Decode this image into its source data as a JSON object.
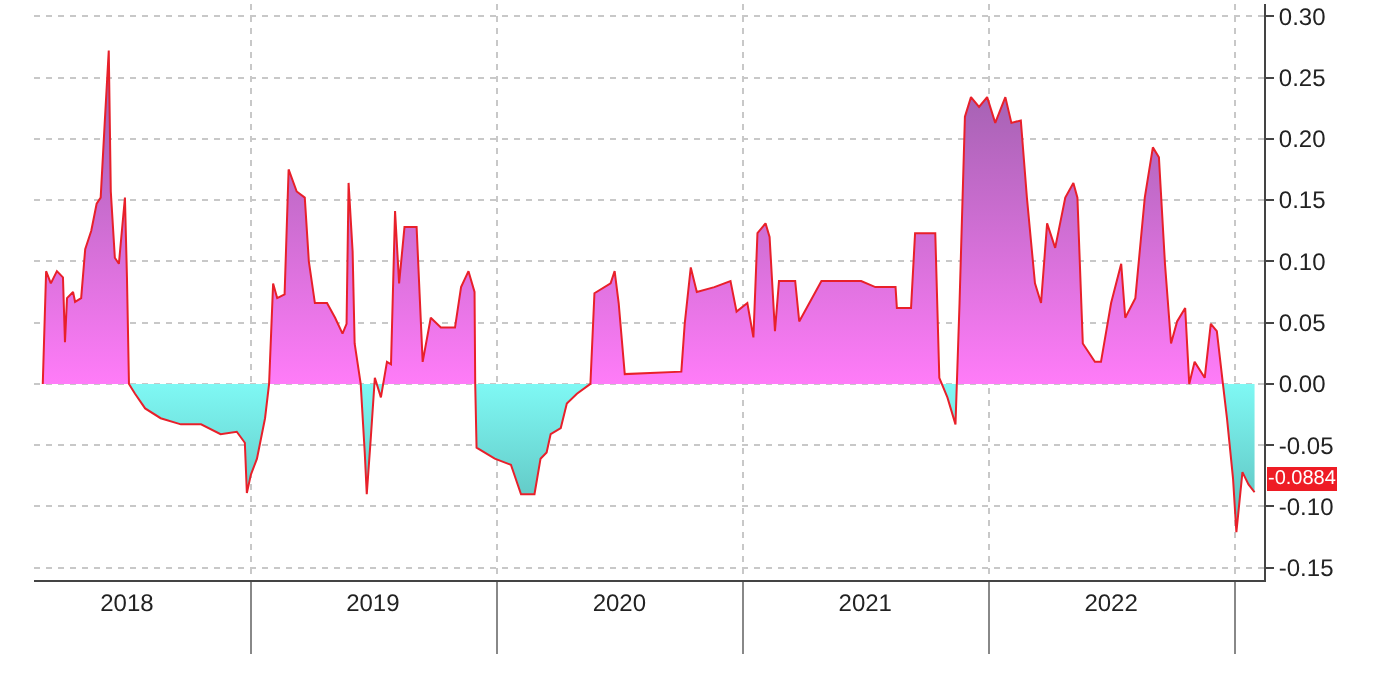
{
  "chart_data": {
    "type": "area",
    "x": [
      "2018-02-26",
      "2018-03-03",
      "2018-03-10",
      "2018-03-19",
      "2018-03-28",
      "2018-03-31",
      "2018-04-03",
      "2018-04-12",
      "2018-04-15",
      "2018-04-24",
      "2018-04-30",
      "2018-05-09",
      "2018-05-17",
      "2018-05-23",
      "2018-05-29",
      "2018-06-04",
      "2018-06-07",
      "2018-06-13",
      "2018-06-19",
      "2018-06-28",
      "2018-07-01",
      "2018-07-04",
      "2018-07-13",
      "2018-07-28",
      "2018-08-20",
      "2018-09-19",
      "2018-10-19",
      "2018-11-17",
      "2018-12-11",
      "2018-12-23",
      "2018-12-26",
      "2019-01-01",
      "2019-01-10",
      "2019-01-22",
      "2019-01-28",
      "2019-02-03",
      "2019-02-09",
      "2019-02-20",
      "2019-02-26",
      "2019-03-10",
      "2019-03-22",
      "2019-03-28",
      "2019-04-06",
      "2019-04-24",
      "2019-05-06",
      "2019-05-17",
      "2019-05-23",
      "2019-05-26",
      "2019-06-01",
      "2019-06-04",
      "2019-06-13",
      "2019-06-19",
      "2019-06-22",
      "2019-06-28",
      "2019-07-04",
      "2019-07-13",
      "2019-07-22",
      "2019-07-28",
      "2019-08-03",
      "2019-08-09",
      "2019-08-17",
      "2019-09-04",
      "2019-09-13",
      "2019-09-25",
      "2019-10-10",
      "2019-10-31",
      "2019-11-09",
      "2019-11-20",
      "2019-11-29",
      "2019-11-30",
      "2019-12-02",
      "2019-12-29",
      "2020-01-22",
      "2020-02-06",
      "2020-02-26",
      "2020-03-06",
      "2020-03-15",
      "2020-03-21",
      "2020-04-05",
      "2020-04-14",
      "2020-04-29",
      "2020-05-19",
      "2020-05-25",
      "2020-06-18",
      "2020-06-24",
      "2020-06-30",
      "2020-07-09",
      "2020-10-01",
      "2020-10-06",
      "2020-10-15",
      "2020-10-24",
      "2020-11-19",
      "2020-12-13",
      "2020-12-22",
      "2021-01-07",
      "2021-01-16",
      "2021-01-22",
      "2021-02-03",
      "2021-02-09",
      "2021-02-17",
      "2021-02-23",
      "2021-03-19",
      "2021-03-25",
      "2021-04-27",
      "2021-06-25",
      "2021-07-16",
      "2021-08-15",
      "2021-08-17",
      "2021-09-07",
      "2021-09-13",
      "2021-10-13",
      "2021-10-19",
      "2021-10-31",
      "2021-11-12",
      "2021-11-18",
      "2021-11-26",
      "2021-12-05",
      "2021-12-17",
      "2021-12-29",
      "2022-01-10",
      "2022-01-25",
      "2022-02-03",
      "2022-02-17",
      "2022-02-26",
      "2022-03-10",
      "2022-03-19",
      "2022-03-28",
      "2022-04-09",
      "2022-04-24",
      "2022-05-06",
      "2022-05-12",
      "2022-05-20",
      "2022-06-07",
      "2022-06-16",
      "2022-07-01",
      "2022-07-16",
      "2022-07-22",
      "2022-08-06",
      "2022-08-20",
      "2022-09-01",
      "2022-09-10",
      "2022-09-19",
      "2022-09-28",
      "2022-10-07",
      "2022-10-19",
      "2022-10-25",
      "2022-11-02",
      "2022-11-17",
      "2022-11-26",
      "2022-12-05",
      "2022-12-14",
      "2022-12-20",
      "2022-12-29",
      "2023-01-03",
      "2023-01-12",
      "2023-01-21",
      "2023-01-30"
    ],
    "series": [
      {
        "color": "#e8202a",
        "values": [
          0,
          0.092,
          0.082,
          0.092,
          0.087,
          0.034,
          0.07,
          0.075,
          0.067,
          0.07,
          0.11,
          0.125,
          0.147,
          0.152,
          0.213,
          0.272,
          0.157,
          0.103,
          0.098,
          0.152,
          0.087,
          0,
          -0.008,
          -0.02,
          -0.028,
          -0.033,
          -0.033,
          -0.041,
          -0.039,
          -0.048,
          -0.089,
          -0.074,
          -0.061,
          -0.028,
          0,
          0.082,
          0.07,
          0.073,
          0.175,
          0.157,
          0.152,
          0.1,
          0.066,
          0.066,
          0.054,
          0.041,
          0.049,
          0.164,
          0.108,
          0.033,
          0,
          -0.056,
          -0.09,
          -0.044,
          0.005,
          -0.011,
          0.018,
          0.016,
          0.141,
          0.082,
          0.128,
          0.128,
          0.018,
          0.054,
          0.046,
          0.046,
          0.079,
          0.092,
          0.075,
          0,
          -0.052,
          -0.061,
          -0.066,
          -0.09,
          -0.09,
          -0.061,
          -0.056,
          -0.041,
          -0.036,
          -0.016,
          -0.008,
          0,
          0.074,
          0.082,
          0.092,
          0.066,
          0.008,
          0.01,
          0.049,
          0.095,
          0.075,
          0.079,
          0.084,
          0.059,
          0.066,
          0.038,
          0.123,
          0.131,
          0.12,
          0.043,
          0.084,
          0.084,
          0.051,
          0.084,
          0.084,
          0.079,
          0.079,
          0.062,
          0.062,
          0.123,
          0.123,
          0.005,
          -0.011,
          -0.033,
          0.066,
          0.218,
          0.234,
          0.226,
          0.234,
          0.213,
          0.234,
          0.213,
          0.215,
          0.152,
          0.082,
          0.066,
          0.131,
          0.111,
          0.152,
          0.164,
          0.152,
          0.033,
          0.018,
          0.018,
          0.066,
          0.098,
          0.054,
          0.07,
          0.152,
          0.193,
          0.185,
          0.098,
          0.033,
          0.051,
          0.062,
          0,
          0.018,
          0.005,
          0.049,
          0.043,
          0,
          -0.028,
          -0.077,
          -0.121,
          -0.072,
          -0.082,
          -0.0884
        ]
      }
    ],
    "xlim": [
      "2018-02-13",
      "2023-02-13"
    ],
    "xticks": [
      {
        "value": "2018-07-01",
        "label": "2018"
      },
      {
        "value": "2019-07-01",
        "label": "2019"
      },
      {
        "value": "2020-07-01",
        "label": "2020"
      },
      {
        "value": "2021-07-01",
        "label": "2021"
      },
      {
        "value": "2022-07-01",
        "label": "2022"
      },
      {
        "value": "2019-01-01",
        "label": null
      },
      {
        "value": "2020-01-01",
        "label": null
      },
      {
        "value": "2021-01-01",
        "label": null
      },
      {
        "value": "2022-01-01",
        "label": null
      },
      {
        "value": "2023-01-01",
        "label": null
      }
    ],
    "ylim": [
      -0.16,
      0.31
    ],
    "yticks": [
      {
        "value": -0.15,
        "label": "-0.15"
      },
      {
        "value": -0.1,
        "label": "-0.10"
      },
      {
        "value": -0.05,
        "label": "-0.05"
      },
      {
        "value": 0,
        "label": "0.00"
      },
      {
        "value": 0.05,
        "label": "0.05"
      },
      {
        "value": 0.1,
        "label": "0.10"
      },
      {
        "value": 0.15,
        "label": "0.15"
      },
      {
        "value": 0.2,
        "label": "0.20"
      },
      {
        "value": 0.25,
        "label": "0.25"
      },
      {
        "value": 0.3,
        "label": "0.30"
      }
    ],
    "annotations": [
      {
        "text": "-0.0884",
        "x": "2023-01-30",
        "y": -0.0884
      }
    ],
    "grid": true
  }
}
